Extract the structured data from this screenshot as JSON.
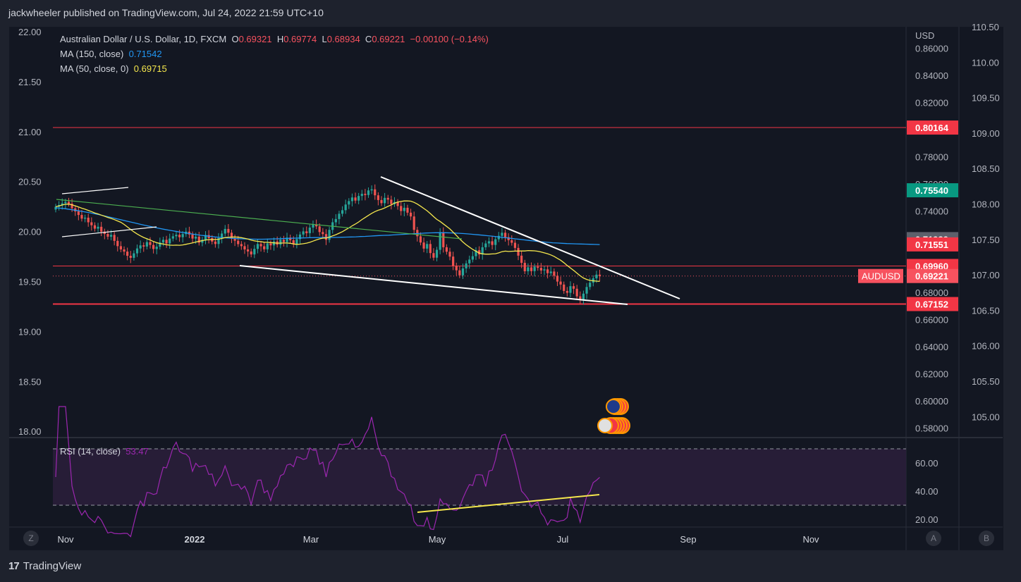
{
  "header": {
    "published_by": "jackwheeler published on TradingView.com, Jul 24, 2022 21:59 UTC+10"
  },
  "legend": {
    "symbol": "Australian Dollar / U.S. Dollar, 1D, FXCM",
    "open_label": "O",
    "open": "0.69321",
    "high_label": "H",
    "high": "0.69774",
    "low_label": "L",
    "low": "0.68934",
    "close_label": "C",
    "close": "0.69221",
    "change": "−0.00100 (−0.14%)",
    "ma150_label": "MA (150, close)",
    "ma150_value": "0.71542",
    "ma50_label": "MA (50, close, 0)",
    "ma50_value": "0.69715"
  },
  "rsi_legend": {
    "label": "RSI (14, close)",
    "value": "53.47"
  },
  "footer": {
    "brand": "TradingView",
    "logo": "17"
  },
  "buttons": {
    "z": "Z",
    "a": "A",
    "b": "B"
  },
  "colors": {
    "background": "#131722",
    "up": "#26a69a",
    "down": "#ef5350",
    "ma150": "#2196f3",
    "ma50": "#f5e74d",
    "rsi": "#9c27b0",
    "hline": "#f23645",
    "trendline": "#ffffff",
    "rsi_trend": "#f5e74d"
  },
  "chart_data": {
    "type": "candlestick",
    "symbol": "AUDUSD",
    "timeframe": "1D",
    "currency": "USD",
    "x_ticks": [
      "Nov",
      "2022",
      "Mar",
      "May",
      "Jul",
      "Sep",
      "Nov"
    ],
    "right_axis_ticks": [
      "0.86000",
      "0.84000",
      "0.82000",
      "0.78000",
      "0.76000",
      "0.74000",
      "0.68000",
      "0.66000",
      "0.64000",
      "0.62000",
      "0.60000",
      "0.58000"
    ],
    "left_axis_ticks": [
      "22.00",
      "21.50",
      "21.00",
      "20.50",
      "20.00",
      "19.50",
      "19.00",
      "18.50",
      "18.00"
    ],
    "far_right_axis_ticks": [
      "110.50",
      "110.00",
      "109.50",
      "109.00",
      "108.50",
      "108.00",
      "107.50",
      "107.00",
      "106.50",
      "106.00",
      "105.50",
      "105.00"
    ],
    "ylim": [
      0.575,
      0.868
    ],
    "price_labels": [
      {
        "value": "0.80164",
        "color": "#f23645"
      },
      {
        "value": "0.75540",
        "color": "#089981"
      },
      {
        "value": "0.71939",
        "color": "#5d606b"
      },
      {
        "value": "0.71551",
        "color": "#f23645"
      },
      {
        "value": "0.69960",
        "color": "#f23645"
      },
      {
        "value": "0.69221",
        "color": "#f7525f",
        "tag": "AUDUSD"
      },
      {
        "value": "0.67152",
        "color": "#f23645"
      }
    ],
    "horizontal_levels": [
      0.80164,
      0.6996,
      0.67152
    ],
    "closes": [
      0.7432,
      0.7445,
      0.7458,
      0.7469,
      0.7455,
      0.7421,
      0.7398,
      0.7372,
      0.7345,
      0.7352,
      0.7318,
      0.7296,
      0.7271,
      0.7285,
      0.7249,
      0.7232,
      0.7212,
      0.7225,
      0.7181,
      0.7142,
      0.7118,
      0.7102,
      0.7071,
      0.7056,
      0.7089,
      0.7125,
      0.7148,
      0.7139,
      0.7172,
      0.7151,
      0.7121,
      0.7138,
      0.7169,
      0.7189,
      0.7162,
      0.7198,
      0.7215,
      0.7226,
      0.7208,
      0.7231,
      0.7249,
      0.7228,
      0.7198,
      0.7212,
      0.7168,
      0.7189,
      0.7224,
      0.7201,
      0.7176,
      0.7158,
      0.7202,
      0.7235,
      0.7269,
      0.7241,
      0.7198,
      0.7182,
      0.7157,
      0.7142,
      0.7118,
      0.7103,
      0.7081,
      0.7122,
      0.7158,
      0.7141,
      0.7119,
      0.7162,
      0.7148,
      0.7177,
      0.7153,
      0.7189,
      0.7172,
      0.7205,
      0.7186,
      0.7159,
      0.7194,
      0.7228,
      0.7251,
      0.7238,
      0.7279,
      0.7302,
      0.7288,
      0.7246,
      0.7231,
      0.7189,
      0.7262,
      0.7318,
      0.7342,
      0.7381,
      0.7407,
      0.7449,
      0.7474,
      0.7501,
      0.7478,
      0.7512,
      0.7528,
      0.7519,
      0.7553,
      0.7561,
      0.7517,
      0.7482,
      0.7459,
      0.7498,
      0.7485,
      0.7452,
      0.7467,
      0.7438,
      0.7401,
      0.7425,
      0.7389,
      0.7361,
      0.7262,
      0.7215,
      0.7169,
      0.7124,
      0.7158,
      0.7091,
      0.7057,
      0.7115,
      0.7245,
      0.7134,
      0.7101,
      0.7065,
      0.6998,
      0.6964,
      0.6927,
      0.6978,
      0.7015,
      0.7043,
      0.7068,
      0.7112,
      0.7081,
      0.7134,
      0.7162,
      0.7178,
      0.7151,
      0.7193,
      0.7218,
      0.7241,
      0.7208,
      0.7186,
      0.7167,
      0.7129,
      0.7072,
      0.7019,
      0.6957,
      0.6986,
      0.6958,
      0.6991,
      0.6982,
      0.6963,
      0.6971,
      0.6943,
      0.6955,
      0.6924,
      0.6881,
      0.6859,
      0.6812,
      0.6798,
      0.6847,
      0.6828,
      0.6772,
      0.6745,
      0.6792,
      0.6841,
      0.6873,
      0.6905,
      0.6932,
      0.6922
    ],
    "ma150": [
      0.7425,
      0.7422,
      0.7418,
      0.7413,
      0.7408,
      0.7402,
      0.7396,
      0.739,
      0.7383,
      0.7376,
      0.7368,
      0.736,
      0.7352,
      0.7344,
      0.7336,
      0.7328,
      0.732,
      0.7312,
      0.7304,
      0.7296,
      0.7289,
      0.7281,
      0.7274,
      0.7267,
      0.7261,
      0.7255,
      0.7249,
      0.7243,
      0.7238,
      0.7232,
      0.7227,
      0.7222,
      0.7218,
      0.7214,
      0.721,
      0.7207,
      0.7204,
      0.7201,
      0.7199,
      0.7197,
      0.7196,
      0.7195,
      0.7194,
      0.7193,
      0.7193,
      0.7194,
      0.7195,
      0.7196,
      0.7197,
      0.7199,
      0.72,
      0.7201,
      0.7202,
      0.7203,
      0.7204,
      0.7205,
      0.7205,
      0.7206,
      0.7206,
      0.7206,
      0.7207,
      0.7208,
      0.7209,
      0.721,
      0.7211,
      0.7213,
      0.7214,
      0.7216,
      0.7218,
      0.722,
      0.7222,
      0.7223,
      0.7225,
      0.7227,
      0.7229,
      0.7231,
      0.7233,
      0.7235,
      0.7237,
      0.7239,
      0.724,
      0.7241,
      0.7241,
      0.7241,
      0.724,
      0.7239,
      0.7237,
      0.7235,
      0.7232,
      0.7229,
      0.7226,
      0.7223,
      0.7219,
      0.7216,
      0.7212,
      0.7208,
      0.7204,
      0.72,
      0.7196,
      0.7192,
      0.7188,
      0.7184,
      0.718,
      0.7176,
      0.7173,
      0.717,
      0.7167,
      0.7165,
      0.7163,
      0.7161,
      0.716,
      0.7159,
      0.7158,
      0.7157,
      0.7156,
      0.7155,
      0.7154
    ]
  }
}
